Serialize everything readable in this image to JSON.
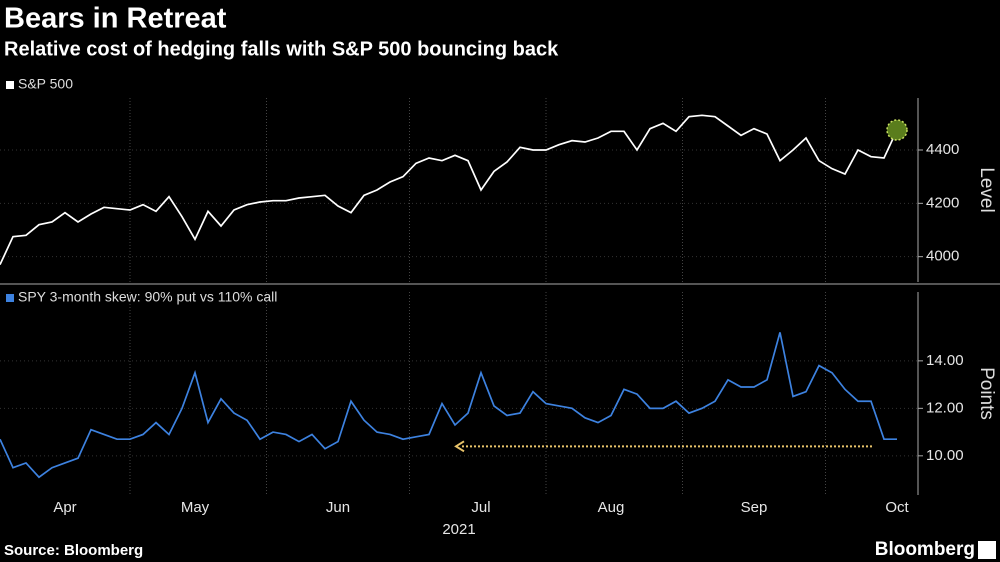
{
  "title": "Bears in Retreat",
  "subtitle": "Relative cost of hedging falls with S&P 500 bouncing back",
  "source": "Source: Bloomberg",
  "brand": "Bloomberg",
  "chart_data": [
    {
      "type": "line",
      "series": [
        {
          "name": "S&P 500",
          "color": "#ffffff",
          "values": [
            3970,
            4075,
            4080,
            4120,
            4130,
            4165,
            4130,
            4160,
            4185,
            4180,
            4175,
            4195,
            4170,
            4225,
            4150,
            4065,
            4170,
            4115,
            4175,
            4195,
            4205,
            4210,
            4210,
            4220,
            4225,
            4230,
            4190,
            4165,
            4230,
            4250,
            4280,
            4300,
            4350,
            4370,
            4360,
            4380,
            4360,
            4250,
            4320,
            4355,
            4410,
            4400,
            4400,
            4420,
            4435,
            4430,
            4445,
            4470,
            4470,
            4400,
            4480,
            4500,
            4470,
            4525,
            4530,
            4525,
            4490,
            4455,
            4480,
            4460,
            4360,
            4400,
            4445,
            4360,
            4330,
            4310,
            4400,
            4375,
            4370,
            4475
          ]
        }
      ],
      "ylim": [
        3905,
        4595
      ],
      "yticks": [
        4000,
        4200,
        4400
      ],
      "ylabel": "Level",
      "highlight_last": true,
      "highlight_color": "#5a7d1c"
    },
    {
      "type": "line",
      "categories": [
        null,
        null,
        null,
        null,
        null,
        "Apr",
        null,
        null,
        null,
        null,
        null,
        null,
        null,
        null,
        null,
        "May",
        null,
        null,
        null,
        null,
        null,
        null,
        null,
        null,
        null,
        null,
        "Jun",
        null,
        null,
        null,
        null,
        null,
        null,
        null,
        null,
        null,
        null,
        "Jul",
        null,
        null,
        null,
        null,
        null,
        null,
        null,
        null,
        null,
        "Aug",
        null,
        null,
        null,
        null,
        null,
        null,
        null,
        null,
        null,
        null,
        "Sep",
        null,
        null,
        null,
        null,
        null,
        null,
        null,
        null,
        null,
        null,
        "Oct"
      ],
      "xlabel": "2021",
      "series": [
        {
          "name": "SPY 3-month skew: 90% put vs 110% call",
          "color": "#3d82e0",
          "values": [
            10.7,
            9.5,
            9.7,
            9.1,
            9.5,
            9.7,
            9.9,
            11.1,
            10.9,
            10.7,
            10.7,
            10.9,
            11.4,
            10.9,
            12.0,
            13.5,
            11.4,
            12.4,
            11.8,
            11.5,
            10.7,
            11.0,
            10.9,
            10.6,
            10.9,
            10.3,
            10.6,
            12.3,
            11.5,
            11.0,
            10.9,
            10.7,
            10.8,
            10.9,
            12.2,
            11.3,
            11.8,
            13.5,
            12.1,
            11.7,
            11.8,
            12.7,
            12.2,
            12.1,
            12.0,
            11.6,
            11.4,
            11.7,
            12.8,
            12.6,
            12.0,
            12.0,
            12.3,
            11.8,
            12.0,
            12.3,
            13.2,
            12.9,
            12.9,
            13.2,
            15.2,
            12.5,
            12.7,
            13.8,
            13.5,
            12.8,
            12.3,
            12.3,
            10.7,
            10.7
          ]
        }
      ],
      "ylim": [
        8.35,
        16.9
      ],
      "yticks": [
        {
          "value": 10,
          "label": "10.00"
        },
        {
          "value": 12,
          "label": "12.00"
        },
        {
          "value": 14,
          "label": "14.00"
        }
      ],
      "ylabel": "Points",
      "reference_line": {
        "value": 10.4,
        "color": "#e8c36a"
      }
    }
  ]
}
